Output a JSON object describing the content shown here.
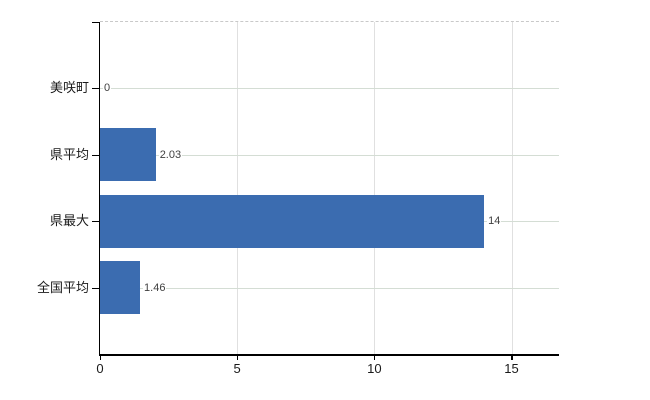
{
  "chart_data": {
    "type": "bar",
    "orientation": "horizontal",
    "title": "",
    "xlabel": "",
    "ylabel": "",
    "categories": [
      "美咲町",
      "県平均",
      "県最大",
      "全国平均"
    ],
    "values": [
      0,
      2.03,
      14,
      1.46
    ],
    "value_labels": [
      "0",
      "2.03",
      "14",
      "1.46"
    ],
    "xticks": [
      0,
      5,
      10,
      15
    ],
    "xtick_labels": [
      "0",
      "5",
      "10",
      "15"
    ],
    "xlim": [
      0,
      16.73
    ],
    "grid": true,
    "legend": false
  },
  "colors": {
    "bar": "#3b6cb0",
    "axis": "#000000",
    "gridline_vertical": "#e0e0e0",
    "gridline_horizontal": "#d4ddd4",
    "top_border_dashed": "#c9c9c9",
    "value_label_text": "#404040",
    "tick_label_text": "#1a1a1a",
    "background": "#ffffff"
  }
}
